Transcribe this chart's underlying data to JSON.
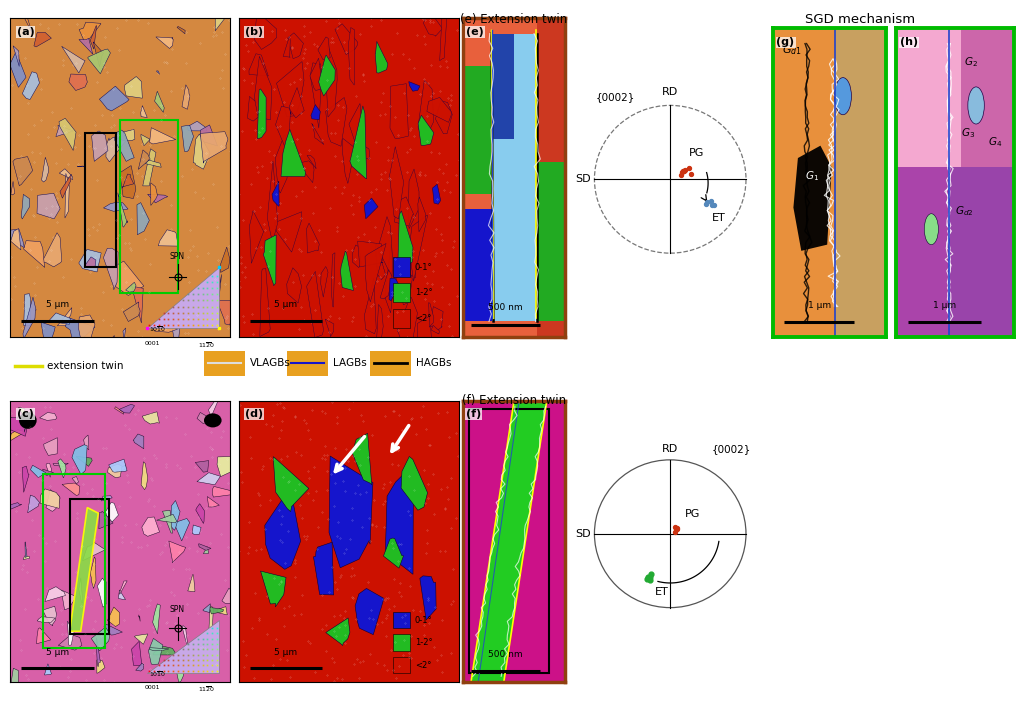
{
  "bg": "#ffffff",
  "panel_a": {
    "label": "(a)",
    "scale": "5 μm"
  },
  "panel_b": {
    "label": "(b)",
    "scale": "5 μm",
    "legend": [
      {
        "c": "#1515CC",
        "l": "0-1°"
      },
      {
        "c": "#22BB22",
        "l": "1-2°"
      },
      {
        "c": "#CC1100",
        "l": "<2°"
      }
    ]
  },
  "panel_c": {
    "label": "(c)",
    "scale": "5 μm"
  },
  "panel_d": {
    "label": "(d)",
    "scale": "5 μm",
    "legend": [
      {
        "c": "#1515CC",
        "l": "0-1°"
      },
      {
        "c": "#22BB22",
        "l": "1-2°"
      },
      {
        "c": "#CC1100",
        "l": "<2°"
      }
    ]
  },
  "panel_e": {
    "label": "(e) Extension twin",
    "scale": "500 nm"
  },
  "panel_f": {
    "label": "(f) Extension twin",
    "scale": "500 nm"
  },
  "panel_g": {
    "label": "(g)",
    "scale": "1 μm"
  },
  "panel_h": {
    "label": "(h)",
    "scale": "1 μm"
  },
  "sgd_label": "SGD mechanism",
  "legend": {
    "ext_twin_color": "#DDDD00",
    "ext_twin_label": "extension twin",
    "vlagbs_label": "VLAGBs",
    "lagbs_label": "LAGBs",
    "hagbs_label": "HAGBs"
  },
  "pf1": {
    "title": "{0002}",
    "rd": "RD",
    "sd": "SD",
    "pg": "PG",
    "et": "ET",
    "pg_color": "#CC3311",
    "et_color": "#5588BB"
  },
  "pf2": {
    "title": "{0002}",
    "rd": "RD",
    "sd": "SD",
    "pg": "PG",
    "et": "ET",
    "pg_color": "#CC3311",
    "et_color": "#22AA33"
  }
}
